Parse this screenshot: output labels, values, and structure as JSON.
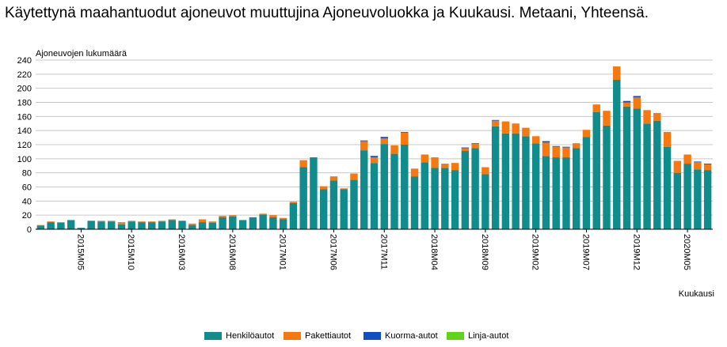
{
  "title": "Käytettynä maahantuodut ajoneuvot muuttujina Ajoneuvoluokka ja Kuukausi. Metaani, Yhteensä.",
  "chart_data": {
    "type": "bar",
    "stacked": true,
    "ylabel": "Ajoneuvojen lukumäärä",
    "xlabel": "Kuukausi",
    "ylim": [
      0,
      240
    ],
    "yticks": [
      0,
      20,
      40,
      60,
      80,
      100,
      120,
      140,
      160,
      180,
      200,
      220,
      240
    ],
    "grid": true,
    "legend_position": "bottom",
    "categories": [
      "2015M01",
      "2015M02",
      "2015M03",
      "2015M04",
      "2015M05",
      "2015M06",
      "2015M07",
      "2015M08",
      "2015M09",
      "2015M10",
      "2015M11",
      "2015M12",
      "2016M01",
      "2016M02",
      "2016M03",
      "2016M04",
      "2016M05",
      "2016M06",
      "2016M07",
      "2016M08",
      "2016M09",
      "2016M10",
      "2016M11",
      "2016M12",
      "2017M01",
      "2017M02",
      "2017M03",
      "2017M04",
      "2017M05",
      "2017M06",
      "2017M07",
      "2017M08",
      "2017M09",
      "2017M10",
      "2017M11",
      "2017M12",
      "2018M01",
      "2018M02",
      "2018M03",
      "2018M04",
      "2018M05",
      "2018M06",
      "2018M07",
      "2018M08",
      "2018M09",
      "2018M10",
      "2018M11",
      "2018M12",
      "2019M01",
      "2019M02",
      "2019M03",
      "2019M04",
      "2019M05",
      "2019M06",
      "2019M07",
      "2019M08",
      "2019M09",
      "2019M10",
      "2019M11",
      "2019M12",
      "2020M01",
      "2020M02",
      "2020M03",
      "2020M04",
      "2020M05",
      "2020M06",
      "2020M07"
    ],
    "tick_labels": [
      "2015M05",
      "2015M10",
      "2016M03",
      "2016M08",
      "2017M01",
      "2017M06",
      "2017M11",
      "2018M04",
      "2018M09",
      "2019M02",
      "2019M07",
      "2019M12",
      "2020M05"
    ],
    "series": [
      {
        "name": "Henkilöautot",
        "color": "#118c8c",
        "values": [
          5,
          10,
          9,
          13,
          2,
          12,
          11,
          11,
          7,
          11,
          10,
          10,
          11,
          13,
          12,
          6,
          10,
          9,
          17,
          18,
          13,
          17,
          21,
          17,
          14,
          37,
          88,
          102,
          57,
          69,
          57,
          70,
          112,
          94,
          121,
          107,
          120,
          75,
          95,
          87,
          87,
          84,
          111,
          115,
          78,
          146,
          136,
          136,
          132,
          122,
          104,
          102,
          102,
          115,
          131,
          166,
          147,
          212,
          174,
          171,
          150,
          154,
          117,
          80,
          93,
          85,
          84
        ]
      },
      {
        "name": "Pakettiautot",
        "color": "#f7780f",
        "values": [
          1,
          1,
          1,
          0,
          0,
          0,
          1,
          1,
          3,
          1,
          1,
          1,
          1,
          1,
          0,
          2,
          4,
          2,
          2,
          2,
          0,
          0,
          1,
          3,
          2,
          2,
          10,
          0,
          4,
          6,
          1,
          9,
          13,
          8,
          8,
          12,
          17,
          11,
          11,
          15,
          6,
          10,
          4,
          6,
          10,
          8,
          17,
          14,
          12,
          10,
          19,
          15,
          14,
          7,
          10,
          11,
          21,
          19,
          6,
          16,
          19,
          11,
          21,
          17,
          13,
          10,
          8
        ]
      },
      {
        "name": "Kuorma-autot",
        "color": "#104ec1",
        "values": [
          0,
          0,
          0,
          0,
          0,
          0,
          0,
          0,
          0,
          0,
          0,
          0,
          0,
          0,
          0,
          0,
          0,
          0,
          0,
          0,
          0,
          0,
          0,
          0,
          0,
          0,
          0,
          0,
          0,
          0,
          0,
          0,
          1,
          2,
          2,
          0,
          1,
          0,
          0,
          0,
          0,
          0,
          1,
          1,
          0,
          1,
          0,
          0,
          0,
          0,
          2,
          1,
          1,
          0,
          0,
          0,
          0,
          0,
          2,
          2,
          0,
          0,
          0,
          0,
          0,
          1,
          1
        ]
      },
      {
        "name": "Linja-autot",
        "color": "#61d41a",
        "values": [
          0,
          0,
          0,
          0,
          0,
          0,
          0,
          0,
          0,
          0,
          0,
          0,
          0,
          0,
          0,
          0,
          0,
          0,
          0,
          0,
          0,
          0,
          0,
          0,
          0,
          0,
          0,
          0,
          0,
          0,
          0,
          0,
          0,
          0,
          0,
          0,
          0,
          0,
          0,
          0,
          0,
          0,
          0,
          0,
          0,
          0,
          0,
          0,
          0,
          0,
          0,
          0,
          0,
          0,
          0,
          0,
          0,
          0,
          0,
          0,
          0,
          0,
          0,
          0,
          0,
          0,
          0
        ]
      }
    ]
  }
}
